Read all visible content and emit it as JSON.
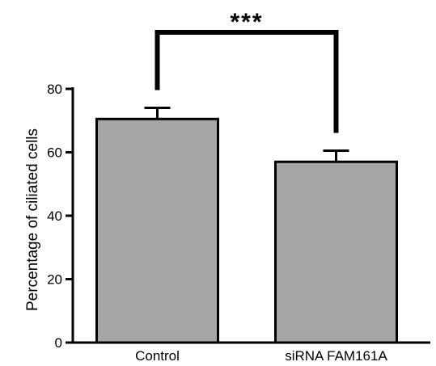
{
  "chart_data": {
    "type": "bar",
    "categories": [
      "Control",
      "siRNA FAM161A"
    ],
    "values": [
      70.5,
      57
    ],
    "errors": [
      3.5,
      3.5
    ],
    "ylabel": "Percentage of ciliated cells",
    "xlabel": "",
    "ylim": [
      0,
      80
    ],
    "yticks": [
      0,
      20,
      40,
      60,
      80
    ],
    "grid": false,
    "bar_color": "#a6a6a6",
    "significance": {
      "between": [
        0,
        1
      ],
      "label": "***"
    }
  }
}
